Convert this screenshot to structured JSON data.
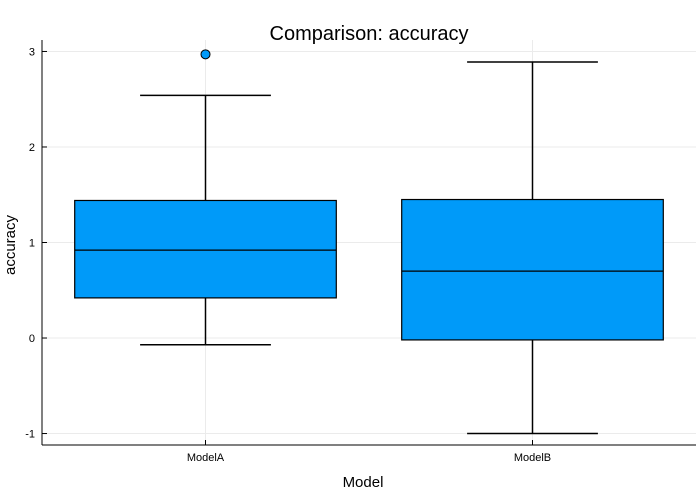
{
  "chart_data": {
    "type": "box",
    "title": "Comparison: accuracy",
    "xlabel": "Model",
    "ylabel": "accuracy",
    "categories": [
      "ModelA",
      "ModelB"
    ],
    "ylim": [
      -1.12,
      3.12
    ],
    "yticks": [
      -1,
      0,
      1,
      2,
      3
    ],
    "grid": true,
    "legend": "none",
    "box_color": "#009af9",
    "series": [
      {
        "category": "ModelA",
        "whisker_low": -0.07,
        "q1": 0.42,
        "median": 0.92,
        "q3": 1.44,
        "whisker_high": 2.54,
        "outliers": [
          2.97
        ]
      },
      {
        "category": "ModelB",
        "whisker_low": -1.0,
        "q1": -0.02,
        "median": 0.7,
        "q3": 1.45,
        "whisker_high": 2.89,
        "outliers": []
      }
    ]
  }
}
